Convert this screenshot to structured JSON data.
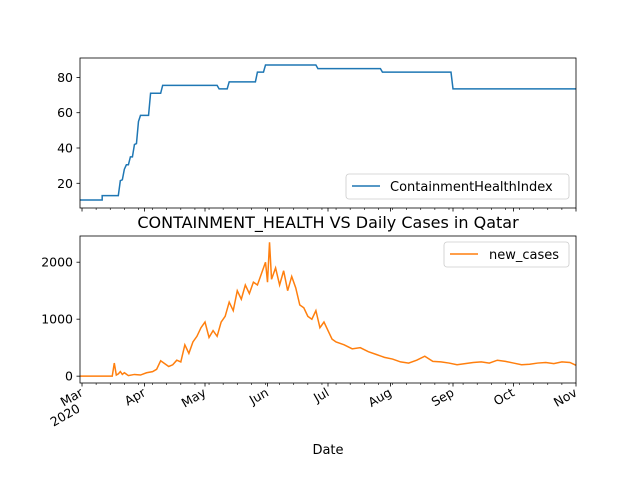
{
  "chart_data": [
    {
      "type": "line",
      "title": "",
      "xlabel": "",
      "ylabel": "",
      "xlim": [
        "2020-02-29",
        "2020-11-01"
      ],
      "ylim": [
        6,
        91
      ],
      "yticks": [
        20,
        40,
        60,
        80
      ],
      "grid": false,
      "legend_position": "lower-right",
      "series": [
        {
          "name": "ContainmentHealthIndex",
          "color": "#1f77b4",
          "points": [
            [
              "2020-02-29",
              10.5
            ],
            [
              "2020-03-11",
              10.5
            ],
            [
              "2020-03-11",
              13.0
            ],
            [
              "2020-03-19",
              13.0
            ],
            [
              "2020-03-20",
              21.5
            ],
            [
              "2020-03-21",
              22.0
            ],
            [
              "2020-03-22",
              28.0
            ],
            [
              "2020-03-23",
              30.5
            ],
            [
              "2020-03-24",
              30.5
            ],
            [
              "2020-03-25",
              35.0
            ],
            [
              "2020-03-26",
              35.0
            ],
            [
              "2020-03-27",
              42.0
            ],
            [
              "2020-03-28",
              42.5
            ],
            [
              "2020-03-29",
              55.0
            ],
            [
              "2020-03-30",
              58.5
            ],
            [
              "2020-04-03",
              58.5
            ],
            [
              "2020-04-04",
              71.0
            ],
            [
              "2020-04-09",
              71.0
            ],
            [
              "2020-04-10",
              75.5
            ],
            [
              "2020-05-07",
              75.5
            ],
            [
              "2020-05-08",
              73.5
            ],
            [
              "2020-05-12",
              73.5
            ],
            [
              "2020-05-13",
              77.5
            ],
            [
              "2020-05-26",
              77.5
            ],
            [
              "2020-05-27",
              83.0
            ],
            [
              "2020-05-30",
              83.0
            ],
            [
              "2020-05-31",
              87.0
            ],
            [
              "2020-06-25",
              87.0
            ],
            [
              "2020-06-26",
              85.0
            ],
            [
              "2020-07-27",
              85.0
            ],
            [
              "2020-07-28",
              83.0
            ],
            [
              "2020-08-31",
              83.0
            ],
            [
              "2020-09-01",
              73.5
            ],
            [
              "2020-11-01",
              73.5
            ]
          ]
        }
      ]
    },
    {
      "type": "line",
      "title": "CONTAINMENT_HEALTH VS Daily Cases in Qatar",
      "xlabel": "Date",
      "ylabel": "",
      "xlim": [
        "2020-02-29",
        "2020-11-01"
      ],
      "ylim": [
        -120,
        2460
      ],
      "yticks": [
        0,
        1000,
        2000
      ],
      "grid": false,
      "legend_position": "upper-right",
      "series": [
        {
          "name": "new_cases",
          "color": "#ff7f0e",
          "points": [
            [
              "2020-02-29",
              0
            ],
            [
              "2020-03-10",
              0
            ],
            [
              "2020-03-16",
              0
            ],
            [
              "2020-03-17",
              230
            ],
            [
              "2020-03-18",
              20
            ],
            [
              "2020-03-19",
              40
            ],
            [
              "2020-03-20",
              80
            ],
            [
              "2020-03-21",
              30
            ],
            [
              "2020-03-22",
              60
            ],
            [
              "2020-03-24",
              10
            ],
            [
              "2020-03-27",
              30
            ],
            [
              "2020-03-30",
              20
            ],
            [
              "2020-04-02",
              60
            ],
            [
              "2020-04-05",
              80
            ],
            [
              "2020-04-07",
              120
            ],
            [
              "2020-04-09",
              270
            ],
            [
              "2020-04-11",
              220
            ],
            [
              "2020-04-13",
              170
            ],
            [
              "2020-04-15",
              200
            ],
            [
              "2020-04-17",
              280
            ],
            [
              "2020-04-19",
              250
            ],
            [
              "2020-04-21",
              550
            ],
            [
              "2020-04-23",
              400
            ],
            [
              "2020-04-25",
              600
            ],
            [
              "2020-04-27",
              700
            ],
            [
              "2020-04-29",
              850
            ],
            [
              "2020-05-01",
              950
            ],
            [
              "2020-05-03",
              680
            ],
            [
              "2020-05-05",
              800
            ],
            [
              "2020-05-07",
              700
            ],
            [
              "2020-05-09",
              950
            ],
            [
              "2020-05-11",
              1050
            ],
            [
              "2020-05-13",
              1300
            ],
            [
              "2020-05-15",
              1150
            ],
            [
              "2020-05-17",
              1500
            ],
            [
              "2020-05-19",
              1350
            ],
            [
              "2020-05-21",
              1600
            ],
            [
              "2020-05-23",
              1450
            ],
            [
              "2020-05-25",
              1650
            ],
            [
              "2020-05-27",
              1600
            ],
            [
              "2020-05-29",
              1800
            ],
            [
              "2020-05-31",
              2000
            ],
            [
              "2020-06-01",
              1650
            ],
            [
              "2020-06-02",
              2350
            ],
            [
              "2020-06-03",
              1700
            ],
            [
              "2020-06-05",
              1900
            ],
            [
              "2020-06-07",
              1600
            ],
            [
              "2020-06-09",
              1850
            ],
            [
              "2020-06-11",
              1500
            ],
            [
              "2020-06-13",
              1750
            ],
            [
              "2020-06-15",
              1550
            ],
            [
              "2020-06-17",
              1250
            ],
            [
              "2020-06-19",
              1200
            ],
            [
              "2020-06-21",
              1050
            ],
            [
              "2020-06-23",
              1000
            ],
            [
              "2020-06-25",
              1150
            ],
            [
              "2020-06-27",
              850
            ],
            [
              "2020-06-29",
              950
            ],
            [
              "2020-07-01",
              800
            ],
            [
              "2020-07-03",
              650
            ],
            [
              "2020-07-05",
              600
            ],
            [
              "2020-07-09",
              550
            ],
            [
              "2020-07-13",
              480
            ],
            [
              "2020-07-17",
              500
            ],
            [
              "2020-07-21",
              430
            ],
            [
              "2020-07-25",
              380
            ],
            [
              "2020-07-29",
              330
            ],
            [
              "2020-08-02",
              300
            ],
            [
              "2020-08-06",
              250
            ],
            [
              "2020-08-10",
              230
            ],
            [
              "2020-08-14",
              280
            ],
            [
              "2020-08-18",
              350
            ],
            [
              "2020-08-22",
              260
            ],
            [
              "2020-08-26",
              250
            ],
            [
              "2020-08-30",
              230
            ],
            [
              "2020-09-03",
              200
            ],
            [
              "2020-09-07",
              220
            ],
            [
              "2020-09-11",
              240
            ],
            [
              "2020-09-15",
              250
            ],
            [
              "2020-09-19",
              230
            ],
            [
              "2020-09-23",
              280
            ],
            [
              "2020-09-27",
              260
            ],
            [
              "2020-10-01",
              230
            ],
            [
              "2020-10-05",
              200
            ],
            [
              "2020-10-09",
              210
            ],
            [
              "2020-10-13",
              230
            ],
            [
              "2020-10-17",
              240
            ],
            [
              "2020-10-21",
              220
            ],
            [
              "2020-10-25",
              250
            ],
            [
              "2020-10-29",
              240
            ],
            [
              "2020-11-01",
              190
            ]
          ]
        }
      ],
      "xticks": [
        {
          "date": "2020-03-01",
          "label": "Mar",
          "label2": "2020"
        },
        {
          "date": "2020-04-01",
          "label": "Apr"
        },
        {
          "date": "2020-05-01",
          "label": "May"
        },
        {
          "date": "2020-06-01",
          "label": "Jun"
        },
        {
          "date": "2020-07-01",
          "label": "Jul"
        },
        {
          "date": "2020-08-01",
          "label": "Aug"
        },
        {
          "date": "2020-09-01",
          "label": "Sep"
        },
        {
          "date": "2020-10-01",
          "label": "Oct"
        },
        {
          "date": "2020-11-01",
          "label": "Nov"
        }
      ]
    }
  ]
}
